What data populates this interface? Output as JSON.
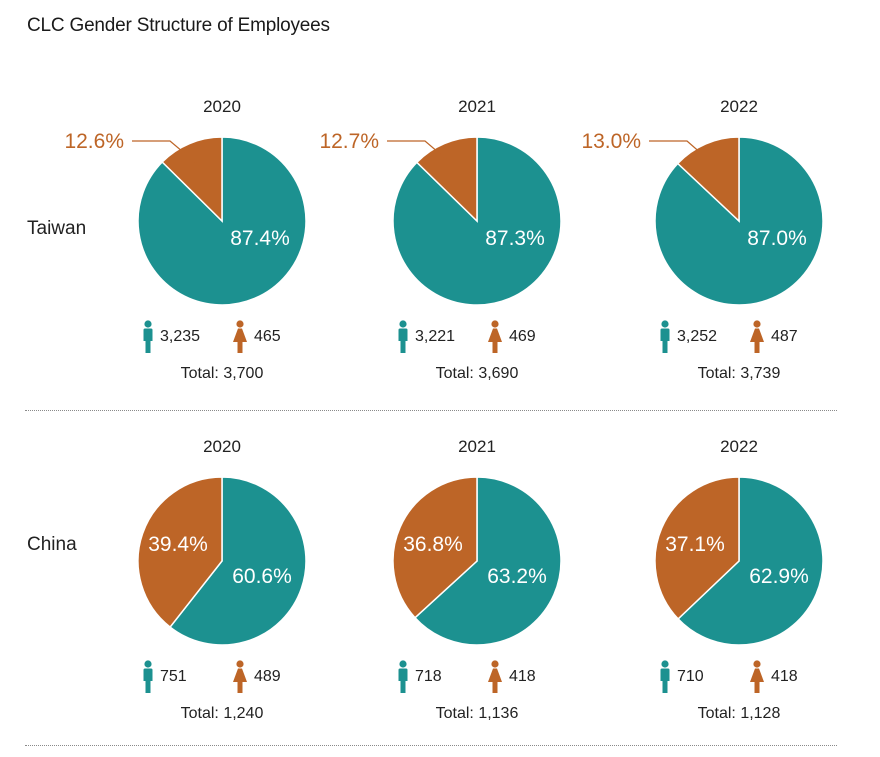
{
  "title": "CLC Gender Structure of Employees",
  "colors": {
    "male": "#1c9190",
    "female": "#bd6527",
    "divider": "#8a8a8a"
  },
  "icons": {
    "male": "male-person-icon",
    "female": "female-person-icon"
  },
  "total_prefix": "Total: ",
  "chart_data": [
    {
      "type": "pie",
      "region": "Taiwan",
      "year": "2020",
      "slices": [
        {
          "name": "male",
          "value": 87.4,
          "label": "87.4%"
        },
        {
          "name": "female",
          "value": 12.6,
          "label": "12.6%"
        }
      ],
      "male_count": "3,235",
      "female_count": "465",
      "total": "3,700"
    },
    {
      "type": "pie",
      "region": "Taiwan",
      "year": "2021",
      "slices": [
        {
          "name": "male",
          "value": 87.3,
          "label": "87.3%"
        },
        {
          "name": "female",
          "value": 12.7,
          "label": "12.7%"
        }
      ],
      "male_count": "3,221",
      "female_count": "469",
      "total": "3,690"
    },
    {
      "type": "pie",
      "region": "Taiwan",
      "year": "2022",
      "slices": [
        {
          "name": "male",
          "value": 87.0,
          "label": "87.0%"
        },
        {
          "name": "female",
          "value": 13.0,
          "label": "13.0%"
        }
      ],
      "male_count": "3,252",
      "female_count": "487",
      "total": "3,739"
    },
    {
      "type": "pie",
      "region": "China",
      "year": "2020",
      "slices": [
        {
          "name": "male",
          "value": 60.6,
          "label": "60.6%"
        },
        {
          "name": "female",
          "value": 39.4,
          "label": "39.4%"
        }
      ],
      "male_count": "751",
      "female_count": "489",
      "total": "1,240"
    },
    {
      "type": "pie",
      "region": "China",
      "year": "2021",
      "slices": [
        {
          "name": "male",
          "value": 63.2,
          "label": "63.2%"
        },
        {
          "name": "female",
          "value": 36.8,
          "label": "36.8%"
        }
      ],
      "male_count": "718",
      "female_count": "418",
      "total": "1,136"
    },
    {
      "type": "pie",
      "region": "China",
      "year": "2022",
      "slices": [
        {
          "name": "male",
          "value": 62.9,
          "label": "62.9%"
        },
        {
          "name": "female",
          "value": 37.1,
          "label": "37.1%"
        }
      ],
      "male_count": "710",
      "female_count": "418",
      "total": "1,128"
    }
  ],
  "regions": [
    "Taiwan",
    "China"
  ]
}
